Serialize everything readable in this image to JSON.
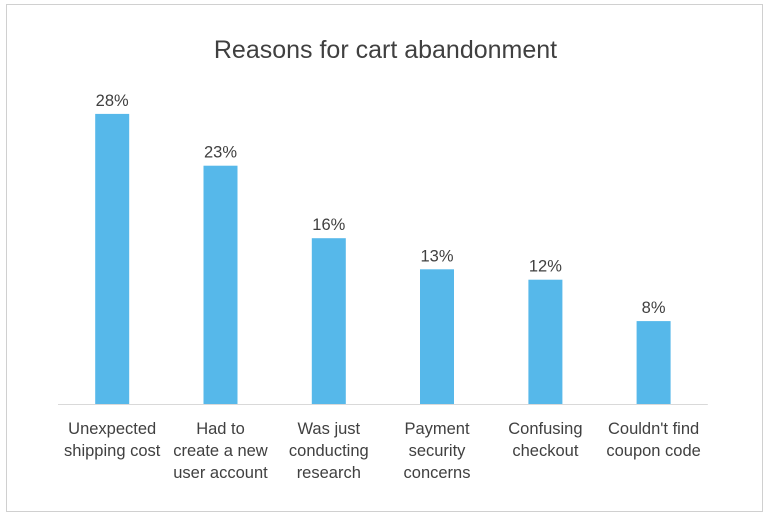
{
  "chart_data": {
    "type": "bar",
    "title": "Reasons for cart abandonment",
    "categories": [
      "Unexpected\nshipping cost",
      "Had to\ncreate a new\nuser account",
      "Was just\nconducting\nresearch",
      "Payment\nsecurity\nconcerns",
      "Confusing\ncheckout",
      "Couldn't find\ncoupon code"
    ],
    "values": [
      28,
      23,
      16,
      13,
      12,
      8
    ],
    "data_labels": [
      "28%",
      "23%",
      "16%",
      "13%",
      "12%",
      "8%"
    ],
    "ylim": [
      0,
      30
    ],
    "grid": false,
    "legend": "none",
    "bar_color": "#56b8ea",
    "axis_color": "#d9d9d9",
    "text_color": "#404040"
  }
}
